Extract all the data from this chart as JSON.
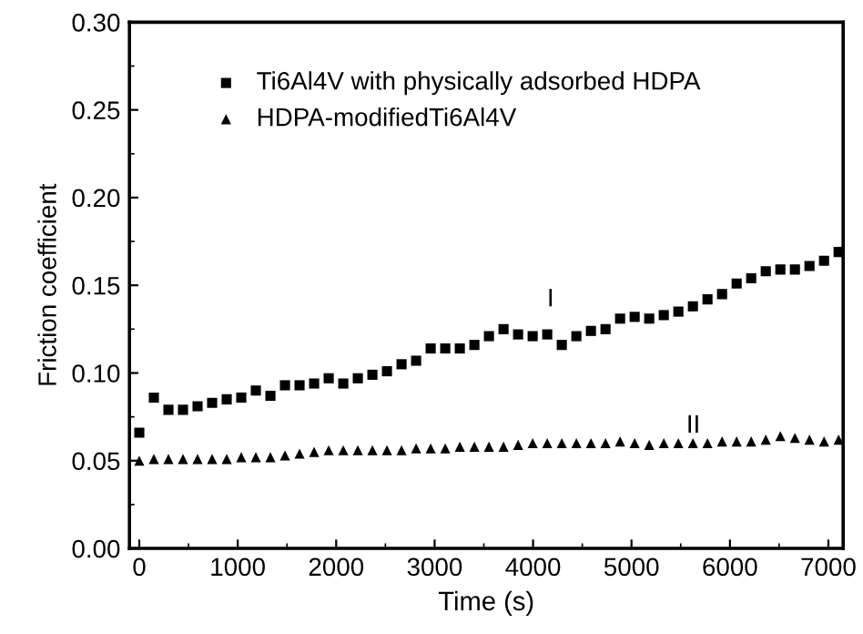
{
  "chart_data": {
    "type": "scatter",
    "xlabel": "Time (s)",
    "ylabel": "Friction coefficient",
    "x": [
      0,
      148,
      296,
      444,
      592,
      740,
      888,
      1036,
      1184,
      1332,
      1480,
      1628,
      1776,
      1924,
      2072,
      2220,
      2368,
      2516,
      2664,
      2812,
      2960,
      3108,
      3256,
      3404,
      3552,
      3700,
      3848,
      3996,
      4144,
      4292,
      4440,
      4588,
      4736,
      4884,
      5032,
      5180,
      5328,
      5476,
      5624,
      5772,
      5920,
      6068,
      6216,
      6364,
      6512,
      6660,
      6808,
      6956,
      7104
    ],
    "series": [
      {
        "name": "Ti6Al4V with physically adsorbed HDPA",
        "color": "#000000",
        "marker": "square",
        "values": [
          0.066,
          0.086,
          0.079,
          0.079,
          0.081,
          0.083,
          0.085,
          0.086,
          0.09,
          0.087,
          0.093,
          0.093,
          0.094,
          0.097,
          0.094,
          0.097,
          0.099,
          0.101,
          0.105,
          0.107,
          0.114,
          0.114,
          0.114,
          0.116,
          0.121,
          0.125,
          0.122,
          0.121,
          0.122,
          0.116,
          0.121,
          0.124,
          0.125,
          0.131,
          0.132,
          0.131,
          0.133,
          0.135,
          0.138,
          0.142,
          0.145,
          0.151,
          0.154,
          0.158,
          0.159,
          0.159,
          0.161,
          0.164,
          0.169
        ]
      },
      {
        "name": "HDPA-modifiedTi6Al4V",
        "color": "#000000",
        "marker": "triangle",
        "values": [
          0.05,
          0.051,
          0.051,
          0.051,
          0.051,
          0.051,
          0.051,
          0.052,
          0.052,
          0.052,
          0.053,
          0.054,
          0.055,
          0.056,
          0.056,
          0.056,
          0.056,
          0.056,
          0.056,
          0.057,
          0.057,
          0.057,
          0.058,
          0.058,
          0.058,
          0.058,
          0.059,
          0.06,
          0.06,
          0.06,
          0.06,
          0.06,
          0.06,
          0.061,
          0.06,
          0.059,
          0.06,
          0.06,
          0.06,
          0.06,
          0.061,
          0.061,
          0.061,
          0.062,
          0.064,
          0.063,
          0.062,
          0.061,
          0.062
        ]
      }
    ],
    "annotations": [
      "I",
      "II"
    ],
    "xlim": [
      -100,
      7150
    ],
    "xticks": [
      0,
      1000,
      2000,
      3000,
      4000,
      5000,
      6000,
      7000
    ],
    "ylim": [
      0,
      0.3
    ],
    "yticks": [
      {
        "value": 0,
        "label": "0.00"
      },
      {
        "value": 0.05,
        "label": "0.05"
      },
      {
        "value": 0.1,
        "label": "0.10"
      },
      {
        "value": 0.15,
        "label": "0.15"
      },
      {
        "value": 0.2,
        "label": "0.20"
      },
      {
        "value": 0.25,
        "label": "0.25"
      },
      {
        "value": 0.3,
        "label": "0.30"
      }
    ],
    "grid": false,
    "legend": "top"
  }
}
